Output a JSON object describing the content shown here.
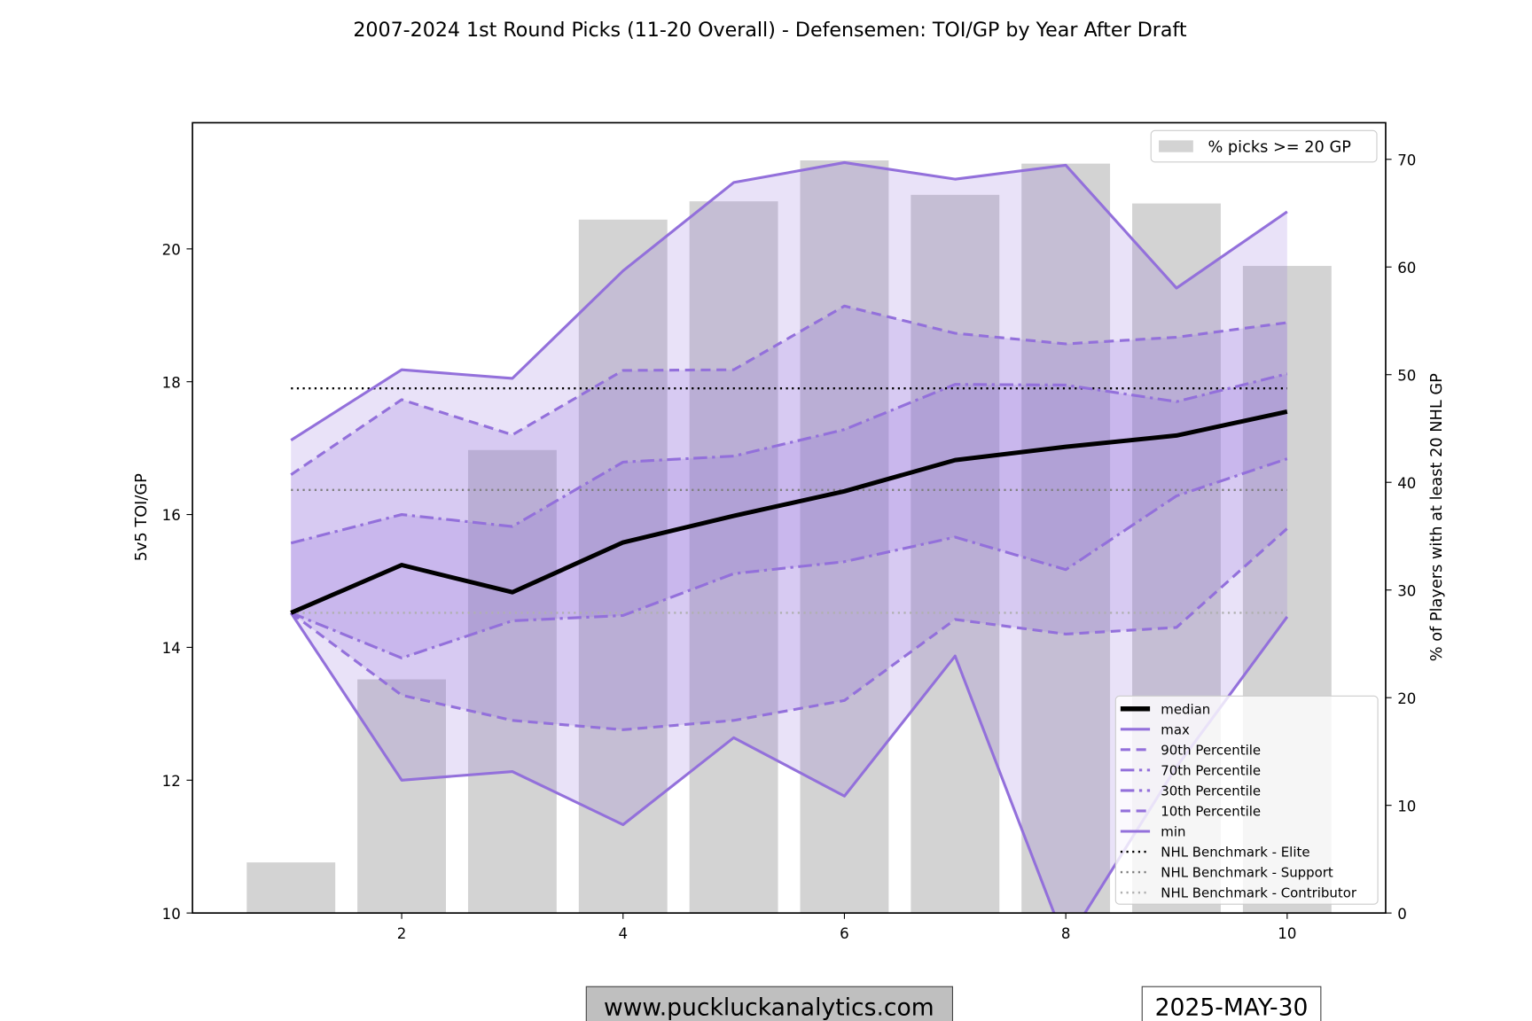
{
  "chart_data": {
    "type": "line",
    "title": "2007-2024 1st Round Picks (11-20 Overall) - Defensemen: TOI/GP by Year After Draft",
    "xlabel": "",
    "ylabel": "5v5 TOI/GP",
    "y2label": "% of Players with at least 20 NHL GP",
    "xlim": [
      0.11,
      10.89
    ],
    "ylim": [
      10,
      21.9
    ],
    "y2lim": [
      0,
      73.4
    ],
    "xticks": [
      2,
      4,
      6,
      8,
      10
    ],
    "yticks": [
      10,
      12,
      14,
      16,
      18,
      20
    ],
    "y2ticks": [
      0,
      10,
      20,
      30,
      40,
      50,
      60,
      70
    ],
    "grid": false,
    "x": [
      1,
      2,
      3,
      4,
      5,
      6,
      7,
      8,
      9,
      10
    ],
    "bars": {
      "name": "% picks >= 20 GP",
      "color": "#d3d3d3",
      "values": [
        4.7,
        21.7,
        43.0,
        64.4,
        66.1,
        69.9,
        66.7,
        69.6,
        65.9,
        60.1
      ]
    },
    "series": [
      {
        "name": "median",
        "color": "#000000",
        "style": "solid",
        "values": [
          14.52,
          15.24,
          14.83,
          15.58,
          15.98,
          16.35,
          16.82,
          17.02,
          17.19,
          17.55
        ]
      },
      {
        "name": "max",
        "color": "#9370db",
        "style": "solid",
        "values": [
          17.12,
          18.18,
          18.05,
          19.67,
          21.0,
          21.3,
          21.05,
          21.26,
          19.41,
          20.56
        ]
      },
      {
        "name": "90th Percentile",
        "color": "#9370db",
        "style": "dashed",
        "values": [
          16.6,
          17.73,
          17.2,
          18.17,
          18.18,
          19.14,
          18.73,
          18.57,
          18.67,
          18.89
        ]
      },
      {
        "name": "70th Percentile",
        "color": "#9370db",
        "style": "dashdot",
        "values": [
          15.57,
          16.0,
          15.82,
          16.79,
          16.88,
          17.28,
          17.96,
          17.95,
          17.7,
          18.12
        ]
      },
      {
        "name": "30th Percentile",
        "color": "#9370db",
        "style": "dashdot",
        "values": [
          14.52,
          13.84,
          14.4,
          14.48,
          15.11,
          15.29,
          15.66,
          15.17,
          16.28,
          16.84
        ]
      },
      {
        "name": "10th Percentile",
        "color": "#9370db",
        "style": "dashed",
        "values": [
          14.52,
          13.28,
          12.9,
          12.76,
          12.9,
          13.2,
          14.42,
          14.2,
          14.3,
          15.79
        ]
      },
      {
        "name": "min",
        "color": "#9370db",
        "style": "solid",
        "values": [
          14.52,
          12.0,
          12.13,
          11.33,
          12.64,
          11.76,
          13.87,
          9.54,
          12.2,
          14.46
        ]
      }
    ],
    "benchmarks": [
      {
        "name": "NHL Benchmark - Elite",
        "color": "#000000",
        "value": 17.9
      },
      {
        "name": "NHL Benchmark - Support",
        "color": "#808080",
        "value": 16.37
      },
      {
        "name": "NHL Benchmark - Contributor",
        "color": "#b0b0b0",
        "value": 14.52
      }
    ],
    "legend_placement": "lower-right",
    "bar_legend_placement": "upper-right"
  },
  "footer": {
    "website": "www.puckluckanalytics.com",
    "date": "2025-MAY-30"
  }
}
